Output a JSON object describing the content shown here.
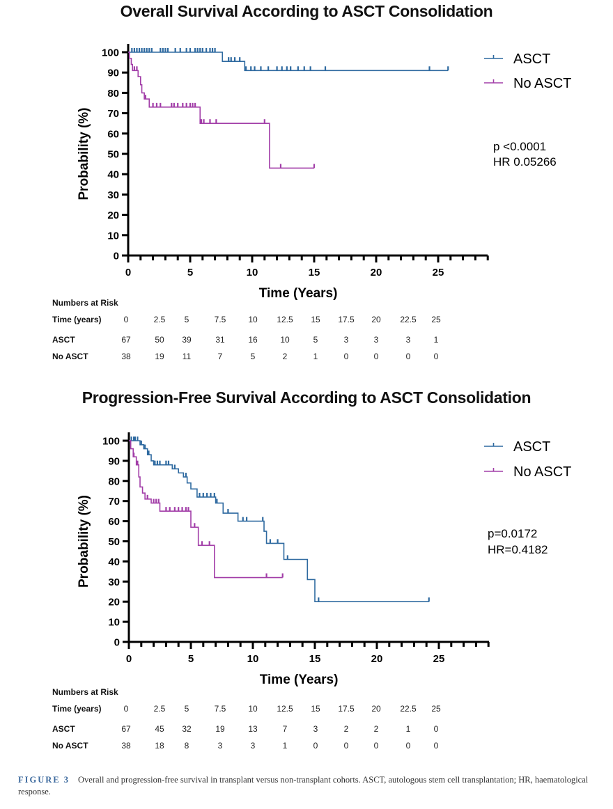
{
  "chart_data": [
    {
      "type": "line",
      "subtype": "kaplan-meier",
      "title": "Overall Survival According to ASCT Consolidation",
      "xlabel": "Time (Years)",
      "ylabel": "Probability (%)",
      "xlim": [
        0,
        29
      ],
      "ylim": [
        0,
        100
      ],
      "xticks": [
        0,
        5,
        10,
        15,
        20,
        25
      ],
      "yticks": [
        0,
        10,
        20,
        30,
        40,
        50,
        60,
        70,
        80,
        90,
        100
      ],
      "grid": false,
      "legend_position": "top-right",
      "stats": [
        "p <0.0001",
        "HR 0.05266"
      ],
      "series": [
        {
          "name": "ASCT",
          "color": "#2f6aa0",
          "steps": [
            [
              0,
              100
            ],
            [
              7.6,
              95.5
            ],
            [
              9.4,
              91
            ]
          ],
          "end": 25.8,
          "censors": [
            0.3,
            0.5,
            0.7,
            0.9,
            1.1,
            1.3,
            1.5,
            1.7,
            1.9,
            2.6,
            2.8,
            3.0,
            3.2,
            3.8,
            4.2,
            4.7,
            5.0,
            5.4,
            5.6,
            5.8,
            6.0,
            6.3,
            6.6,
            6.8,
            7.0,
            8.1,
            8.3,
            8.6,
            9.0,
            9.5,
            9.9,
            10.2,
            10.7,
            11.3,
            12.0,
            12.4,
            12.8,
            13.1,
            13.7,
            14.2,
            14.7,
            15.9,
            24.3,
            25.8
          ]
        },
        {
          "name": "No ASCT",
          "color": "#a23ea8",
          "steps": [
            [
              0,
              100
            ],
            [
              0.1,
              97
            ],
            [
              0.25,
              94
            ],
            [
              0.35,
              91
            ],
            [
              0.8,
              88
            ],
            [
              1.0,
              84
            ],
            [
              1.1,
              80
            ],
            [
              1.3,
              77
            ],
            [
              1.7,
              73
            ],
            [
              5.8,
              65
            ],
            [
              11.4,
              43
            ]
          ],
          "end": 15.0,
          "censors": [
            0.5,
            0.7,
            1.4,
            2.0,
            2.3,
            2.6,
            3.5,
            3.7,
            4.0,
            4.4,
            4.7,
            5.0,
            5.2,
            5.4,
            5.9,
            6.1,
            6.6,
            7.1,
            11.0,
            12.3,
            15.0
          ]
        }
      ]
    },
    {
      "type": "line",
      "subtype": "kaplan-meier",
      "title": "Progression-Free Survival According to ASCT Consolidation",
      "xlabel": "Time (Years)",
      "ylabel": "Probability (%)",
      "xlim": [
        0,
        29
      ],
      "ylim": [
        0,
        100
      ],
      "xticks": [
        0,
        5,
        10,
        15,
        20,
        25
      ],
      "yticks": [
        0,
        10,
        20,
        30,
        40,
        50,
        60,
        70,
        80,
        90,
        100
      ],
      "grid": false,
      "legend_position": "top-right",
      "stats": [
        "p=0.0172",
        "HR=0.4182"
      ],
      "series": [
        {
          "name": "ASCT",
          "color": "#2f6aa0",
          "steps": [
            [
              0,
              100
            ],
            [
              0.9,
              98
            ],
            [
              1.2,
              96
            ],
            [
              1.5,
              93
            ],
            [
              1.8,
              90
            ],
            [
              2.0,
              88
            ],
            [
              3.5,
              86
            ],
            [
              4.0,
              84
            ],
            [
              4.4,
              82
            ],
            [
              4.7,
              79
            ],
            [
              5.0,
              76
            ],
            [
              5.5,
              72
            ],
            [
              7.0,
              69
            ],
            [
              7.6,
              64
            ],
            [
              8.8,
              60
            ],
            [
              10.9,
              55
            ],
            [
              11.1,
              49
            ],
            [
              12.5,
              41
            ],
            [
              14.4,
              31
            ],
            [
              15.0,
              20
            ]
          ],
          "end": 24.2,
          "censors": [
            0.2,
            0.4,
            0.5,
            0.7,
            1.0,
            1.3,
            1.6,
            2.1,
            2.3,
            2.5,
            3.0,
            3.2,
            3.7,
            4.6,
            5.7,
            6.0,
            6.3,
            6.6,
            6.9,
            7.1,
            8.0,
            9.2,
            9.5,
            10.8,
            11.4,
            12.0,
            12.8,
            15.3,
            24.2
          ]
        },
        {
          "name": "No ASCT",
          "color": "#a23ea8",
          "steps": [
            [
              0,
              100
            ],
            [
              0.15,
              96
            ],
            [
              0.35,
              92
            ],
            [
              0.6,
              88
            ],
            [
              0.8,
              82
            ],
            [
              0.9,
              77
            ],
            [
              1.1,
              74
            ],
            [
              1.3,
              71
            ],
            [
              1.8,
              69
            ],
            [
              2.5,
              65
            ],
            [
              5.0,
              57
            ],
            [
              5.6,
              48
            ],
            [
              6.9,
              32
            ]
          ],
          "end": 12.4,
          "censors": [
            0.4,
            0.7,
            1.5,
            2.0,
            2.2,
            2.4,
            3.0,
            3.3,
            3.7,
            4.0,
            4.3,
            4.6,
            4.8,
            5.3,
            5.9,
            6.5,
            11.1,
            12.4
          ]
        }
      ]
    }
  ],
  "charts": [
    {
      "risk_table": {
        "heading": "Numbers at Risk",
        "time_label": "Time (years)",
        "times": [
          "0",
          "2.5",
          "5",
          "7.5",
          "10",
          "12.5",
          "15",
          "17.5",
          "20",
          "22.5",
          "25"
        ],
        "rows": [
          {
            "label": "ASCT",
            "values": [
              "67",
              "50",
              "39",
              "31",
              "16",
              "10",
              "5",
              "3",
              "3",
              "3",
              "1"
            ]
          },
          {
            "label": "No ASCT",
            "values": [
              "38",
              "19",
              "11",
              "7",
              "5",
              "2",
              "1",
              "0",
              "0",
              "0",
              "0"
            ]
          }
        ]
      }
    },
    {
      "risk_table": {
        "heading": "Numbers at Risk",
        "time_label": "Time (years)",
        "times": [
          "0",
          "2.5",
          "5",
          "7.5",
          "10",
          "12.5",
          "15",
          "17.5",
          "20",
          "22.5",
          "25"
        ],
        "rows": [
          {
            "label": "ASCT",
            "values": [
              "67",
              "45",
              "32",
              "19",
              "13",
              "7",
              "3",
              "2",
              "2",
              "1",
              "0"
            ]
          },
          {
            "label": "No ASCT",
            "values": [
              "38",
              "18",
              "8",
              "3",
              "3",
              "1",
              "0",
              "0",
              "0",
              "0",
              "0"
            ]
          }
        ]
      }
    }
  ],
  "caption": {
    "label": "FIGURE 3",
    "text": "Overall and progression-free survival in transplant versus non-transplant cohorts. ASCT, autologous stem cell transplantation; HR, haematological response."
  }
}
